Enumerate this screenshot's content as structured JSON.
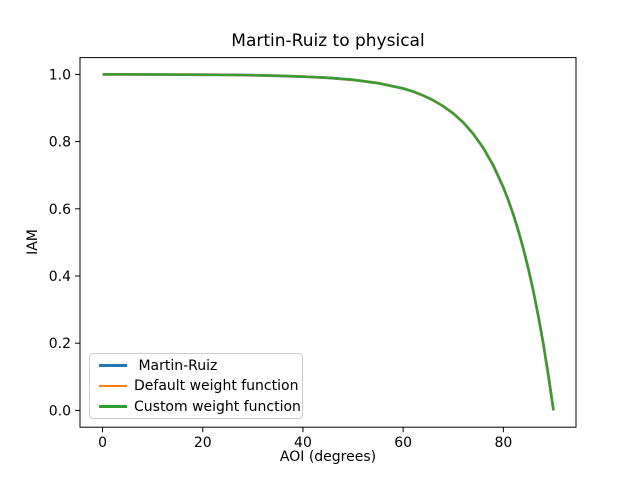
{
  "chart_data": {
    "type": "line",
    "title": "Martin-Ruiz to physical",
    "xlabel": "AOI (degrees)",
    "ylabel": "IAM",
    "xlim": [
      -4.5,
      94.5
    ],
    "ylim": [
      -0.05,
      1.05
    ],
    "grid": false,
    "legend_position": "lower left",
    "background_color": "#ffffff",
    "axes_color": "#000000",
    "xticks": {
      "values": [
        0,
        20,
        40,
        60,
        80
      ],
      "labels": [
        "0",
        "20",
        "40",
        "60",
        "80"
      ]
    },
    "yticks": {
      "values": [
        0.0,
        0.2,
        0.4,
        0.6,
        0.8,
        1.0
      ],
      "labels": [
        "0.0",
        "0.2",
        "0.4",
        "0.6",
        "0.8",
        "1.0"
      ]
    },
    "x": [
      0,
      5,
      10,
      15,
      20,
      25,
      30,
      35,
      40,
      45,
      50,
      55,
      60,
      62,
      64,
      66,
      68,
      70,
      72,
      74,
      76,
      78,
      80,
      81,
      82,
      83,
      84,
      85,
      86,
      87,
      88,
      89,
      90
    ],
    "series": [
      {
        "name": " Martin-Ruiz",
        "color": "#1f77b4",
        "values": [
          1.0,
          0.9999,
          0.9998,
          0.9995,
          0.9991,
          0.9985,
          0.9975,
          0.9959,
          0.9936,
          0.9899,
          0.9839,
          0.9742,
          0.9579,
          0.9487,
          0.9372,
          0.923,
          0.9055,
          0.8837,
          0.8568,
          0.823,
          0.781,
          0.7288,
          0.6635,
          0.625,
          0.5821,
          0.5342,
          0.4806,
          0.4208,
          0.3541,
          0.2795,
          0.1964,
          0.1035,
          0.0
        ]
      },
      {
        "name": "Default weight function",
        "color": "#ff7f0e",
        "values": [
          1.0,
          0.9999,
          0.9998,
          0.9995,
          0.9991,
          0.9985,
          0.9975,
          0.9959,
          0.9936,
          0.9899,
          0.9839,
          0.9742,
          0.9579,
          0.9487,
          0.9372,
          0.923,
          0.9055,
          0.8837,
          0.8568,
          0.823,
          0.781,
          0.7288,
          0.6635,
          0.625,
          0.5821,
          0.5342,
          0.4806,
          0.4208,
          0.3541,
          0.2795,
          0.1964,
          0.1035,
          0.0
        ]
      },
      {
        "name": "Custom weight function",
        "color": "#2ca02c",
        "values": [
          1.0,
          0.9999,
          0.9998,
          0.9995,
          0.9991,
          0.9985,
          0.9975,
          0.9959,
          0.9936,
          0.9899,
          0.9839,
          0.9742,
          0.9579,
          0.9487,
          0.9372,
          0.923,
          0.9055,
          0.8837,
          0.8568,
          0.823,
          0.781,
          0.7288,
          0.6635,
          0.625,
          0.5821,
          0.5342,
          0.4806,
          0.4208,
          0.3541,
          0.2795,
          0.1964,
          0.1035,
          0.0
        ]
      }
    ]
  }
}
